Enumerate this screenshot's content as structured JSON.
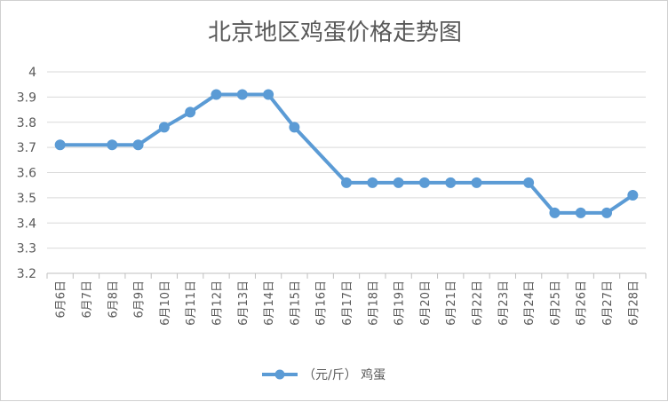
{
  "chart_data": {
    "type": "line",
    "title": "北京地区鸡蛋价格走势图",
    "categories": [
      "6月6日",
      "6月7日",
      "6月8日",
      "6月9日",
      "6月10日",
      "6月11日",
      "6月12日",
      "6月13日",
      "6月14日",
      "6月15日",
      "6月16日",
      "6月17日",
      "6月18日",
      "6月19日",
      "6月20日",
      "6月21日",
      "6月22日",
      "6月23日",
      "6月24日",
      "6月25日",
      "6月26日",
      "6月27日",
      "6月28日"
    ],
    "series": [
      {
        "name": "（元/斤） 鸡蛋",
        "color": "#5b9bd5",
        "values": [
          3.71,
          null,
          3.71,
          3.71,
          3.78,
          3.84,
          3.91,
          3.91,
          3.91,
          3.78,
          null,
          3.56,
          3.56,
          3.56,
          3.56,
          3.56,
          3.56,
          null,
          3.56,
          3.44,
          3.44,
          3.44,
          3.51
        ]
      }
    ],
    "ylim": [
      3.2,
      4.0
    ],
    "yticks": [
      "3.2",
      "3.3",
      "3.4",
      "3.5",
      "3.6",
      "3.7",
      "3.8",
      "3.9",
      "4"
    ],
    "xlabel": "",
    "ylabel": "",
    "grid": true,
    "legend": "bottom",
    "gridColor": "#d9d9d9",
    "axisColor": "#bfbfbf"
  }
}
